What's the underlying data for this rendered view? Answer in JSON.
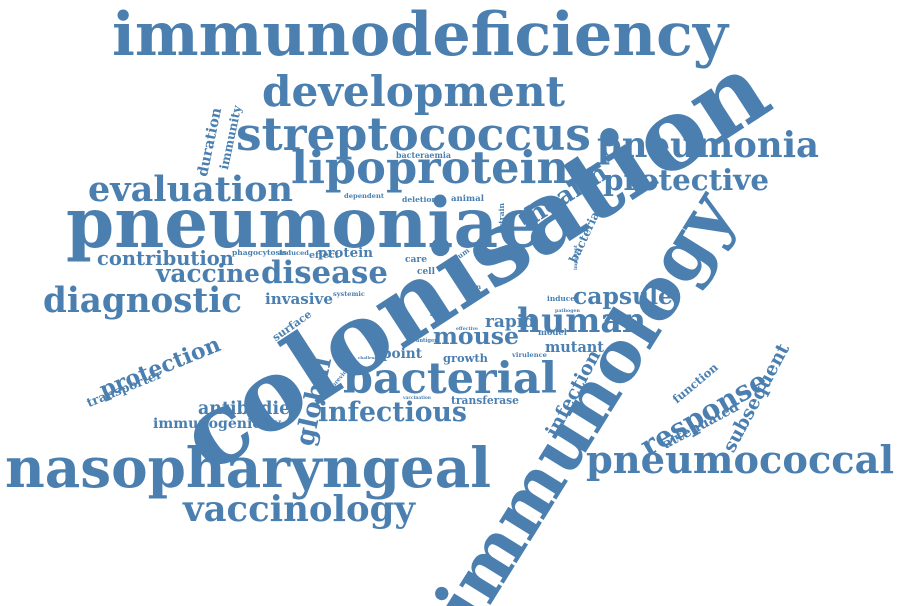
{
  "accent_color": "#4a7fb0",
  "words": [
    {
      "text": "immunodeficiency",
      "orientation": "horizontal"
    },
    {
      "text": "development",
      "orientation": "horizontal"
    },
    {
      "text": "streptococcus",
      "orientation": "horizontal"
    },
    {
      "text": "pneumonia",
      "orientation": "horizontal"
    },
    {
      "text": "lipoprotein",
      "orientation": "horizontal"
    },
    {
      "text": "evaluation",
      "orientation": "horizontal"
    },
    {
      "text": "protective",
      "orientation": "horizontal"
    },
    {
      "text": "pneumoniae",
      "orientation": "horizontal"
    },
    {
      "text": "health",
      "orientation": "tilted-up"
    },
    {
      "text": "contribution",
      "orientation": "horizontal"
    },
    {
      "text": "vaccine",
      "orientation": "horizontal"
    },
    {
      "text": "disease",
      "orientation": "horizontal"
    },
    {
      "text": "diagnostic",
      "orientation": "horizontal"
    },
    {
      "text": "invasive",
      "orientation": "horizontal"
    },
    {
      "text": "capsule",
      "orientation": "horizontal"
    },
    {
      "text": "human",
      "orientation": "horizontal"
    },
    {
      "text": "rapid",
      "orientation": "horizontal"
    },
    {
      "text": "mouse",
      "orientation": "horizontal"
    },
    {
      "text": "mutant",
      "orientation": "horizontal"
    },
    {
      "text": "protection",
      "orientation": "tilted-up"
    },
    {
      "text": "transporter",
      "orientation": "tilted-up"
    },
    {
      "text": "colonisation",
      "orientation": "tilted-up"
    },
    {
      "text": "immunology",
      "orientation": "tilted-up"
    },
    {
      "text": "bacterial",
      "orientation": "horizontal"
    },
    {
      "text": "point",
      "orientation": "horizontal"
    },
    {
      "text": "growth",
      "orientation": "horizontal"
    },
    {
      "text": "virulence",
      "orientation": "horizontal"
    },
    {
      "text": "antibodies",
      "orientation": "horizontal"
    },
    {
      "text": "immunogenicity",
      "orientation": "horizontal"
    },
    {
      "text": "infectious",
      "orientation": "horizontal"
    },
    {
      "text": "transferase",
      "orientation": "horizontal"
    },
    {
      "text": "global",
      "orientation": "tilted-up"
    },
    {
      "text": "response",
      "orientation": "tilted-up"
    },
    {
      "text": "subsequent",
      "orientation": "tilted-up"
    },
    {
      "text": "infection",
      "orientation": "tilted-up"
    },
    {
      "text": "function",
      "orientation": "tilted-up"
    },
    {
      "text": "attenuated",
      "orientation": "tilted-up"
    },
    {
      "text": "nasopharyngeal",
      "orientation": "horizontal"
    },
    {
      "text": "pneumococcal",
      "orientation": "horizontal"
    },
    {
      "text": "vaccinology",
      "orientation": "horizontal"
    },
    {
      "text": "duration",
      "orientation": "vertical"
    },
    {
      "text": "immunity",
      "orientation": "vertical"
    },
    {
      "text": "bacteraemia",
      "orientation": "horizontal"
    },
    {
      "text": "dependent",
      "orientation": "horizontal"
    },
    {
      "text": "deletion",
      "orientation": "horizontal"
    },
    {
      "text": "animal",
      "orientation": "horizontal"
    },
    {
      "text": "strain",
      "orientation": "vertical"
    },
    {
      "text": "bacteria",
      "orientation": "tilted-up"
    },
    {
      "text": "phagocytosis",
      "orientation": "horizontal"
    },
    {
      "text": "induced",
      "orientation": "horizontal"
    },
    {
      "text": "effect",
      "orientation": "horizontal"
    },
    {
      "text": "protein",
      "orientation": "horizontal"
    },
    {
      "text": "care",
      "orientation": "horizontal"
    },
    {
      "text": "serum",
      "orientation": "tilted-up"
    },
    {
      "text": "cell",
      "orientation": "horizontal"
    },
    {
      "text": "systemic",
      "orientation": "horizontal"
    },
    {
      "text": "cation",
      "orientation": "horizontal"
    },
    {
      "text": "induce",
      "orientation": "horizontal"
    },
    {
      "text": "important",
      "orientation": "vertical"
    },
    {
      "text": "surface",
      "orientation": "tilted-up"
    },
    {
      "text": "prior",
      "orientation": "horizontal"
    },
    {
      "text": "pathogen",
      "orientation": "horizontal"
    },
    {
      "text": "model",
      "orientation": "horizontal"
    },
    {
      "text": "antigen",
      "orientation": "horizontal"
    },
    {
      "text": "effective",
      "orientation": "horizontal"
    },
    {
      "text": "challenge",
      "orientation": "horizontal"
    },
    {
      "text": "previous",
      "orientation": "tilted-up"
    },
    {
      "text": "vaccination",
      "orientation": "horizontal"
    }
  ]
}
